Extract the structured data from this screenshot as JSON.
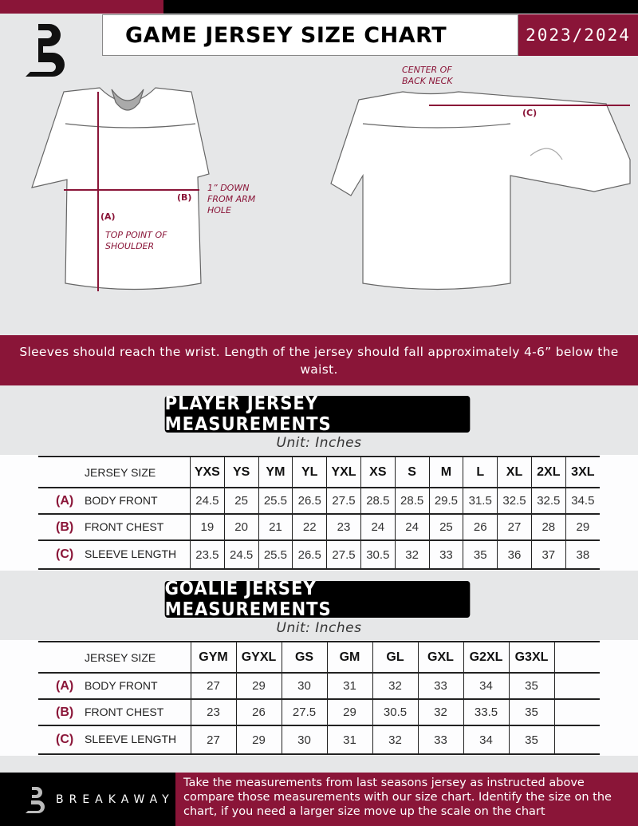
{
  "header": {
    "title": "GAME JERSEY SIZE CHART",
    "season": "2023/2024",
    "brand_logo": "B"
  },
  "colors": {
    "maroon": "#8a1538",
    "black": "#000000",
    "background": "#e6e7e8"
  },
  "diagram": {
    "center_back_neck": "CENTER OF BACK NECK",
    "c_label": "(C)",
    "b_label": "(B)",
    "down_arm_hole": "1” DOWN FROM ARM HOLE",
    "a_label": "(A)",
    "top_shoulder": "TOP POINT OF SHOULDER"
  },
  "instruction": "Sleeves should reach the wrist. Length of the jersey should fall approximately 4-6” below the waist.",
  "player": {
    "title": "PLAYER JERSEY MEASUREMENTS",
    "unit": "Unit: Inches",
    "size_header": "JERSEY SIZE",
    "sizes": [
      "YXS",
      "YS",
      "YM",
      "YL",
      "YXL",
      "XS",
      "S",
      "M",
      "L",
      "XL",
      "2XL",
      "3XL"
    ],
    "rows": [
      {
        "letter": "(A)",
        "label": "BODY FRONT",
        "values": [
          "24.5",
          "25",
          "25.5",
          "26.5",
          "27.5",
          "28.5",
          "28.5",
          "29.5",
          "31.5",
          "32.5",
          "32.5",
          "34.5"
        ]
      },
      {
        "letter": "(B)",
        "label": "FRONT CHEST",
        "values": [
          "19",
          "20",
          "21",
          "22",
          "23",
          "24",
          "24",
          "25",
          "26",
          "27",
          "28",
          "29"
        ]
      },
      {
        "letter": "(C)",
        "label": "SLEEVE LENGTH",
        "values": [
          "23.5",
          "24.5",
          "25.5",
          "26.5",
          "27.5",
          "30.5",
          "32",
          "33",
          "35",
          "36",
          "37",
          "38"
        ]
      }
    ]
  },
  "goalie": {
    "title": "GOALIE JERSEY MEASUREMENTS",
    "unit": "Unit: Inches",
    "size_header": "JERSEY SIZE",
    "sizes": [
      "GYM",
      "GYXL",
      "GS",
      "GM",
      "GL",
      "GXL",
      "G2XL",
      "G3XL",
      ""
    ],
    "rows": [
      {
        "letter": "(A)",
        "label": "BODY FRONT",
        "values": [
          "27",
          "29",
          "30",
          "31",
          "32",
          "33",
          "34",
          "35",
          ""
        ]
      },
      {
        "letter": "(B)",
        "label": "FRONT CHEST",
        "values": [
          "23",
          "26",
          "27.5",
          "29",
          "30.5",
          "32",
          "33.5",
          "35",
          ""
        ]
      },
      {
        "letter": "(C)",
        "label": "SLEEVE LENGTH",
        "values": [
          "27",
          "29",
          "30",
          "31",
          "32",
          "33",
          "34",
          "35",
          ""
        ]
      }
    ]
  },
  "footer": {
    "brand": "BREAKAWAY",
    "text": "Take the measurements from last seasons jersey as instructed above compare those measurements  with our size chart. Identify the size on the chart, if you need a larger size move up the scale on the chart"
  }
}
